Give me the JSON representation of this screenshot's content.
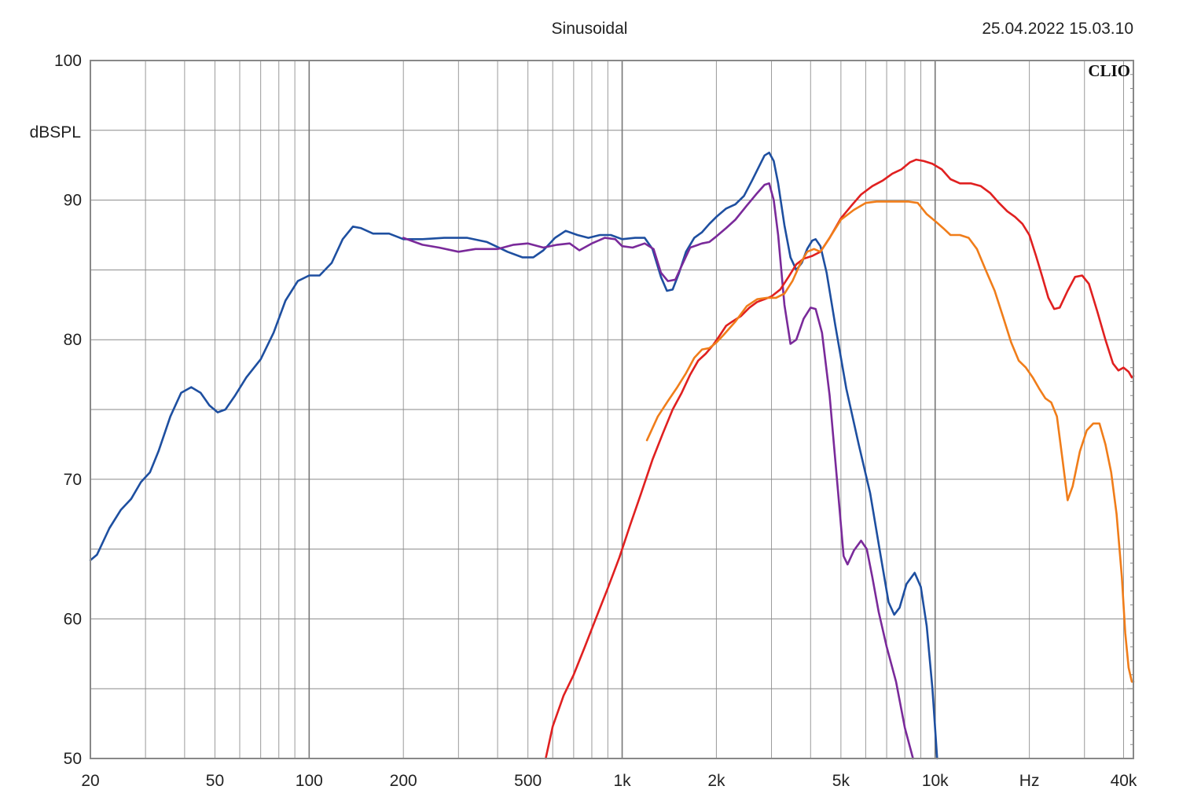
{
  "header": {
    "title": "Sinusoidal",
    "datetime": "25.04.2022 15.03.10",
    "brand": "CLIO"
  },
  "chart_data": {
    "type": "line",
    "title": "Sinusoidal",
    "xlabel": "Hz",
    "ylabel": "dBSPL",
    "x_scale": "log",
    "xlim": [
      20,
      43000
    ],
    "ylim": [
      50,
      100
    ],
    "grid": true,
    "x_ticks": [
      {
        "value": 20,
        "label": "20"
      },
      {
        "value": 50,
        "label": "50"
      },
      {
        "value": 100,
        "label": "100"
      },
      {
        "value": 200,
        "label": "200"
      },
      {
        "value": 500,
        "label": "500"
      },
      {
        "value": 1000,
        "label": "1k"
      },
      {
        "value": 2000,
        "label": "2k"
      },
      {
        "value": 5000,
        "label": "5k"
      },
      {
        "value": 10000,
        "label": "10k"
      },
      {
        "value": 20000,
        "label": "Hz"
      },
      {
        "value": 40000,
        "label": "40k"
      }
    ],
    "y_ticks": [
      {
        "value": 100,
        "label": "100"
      },
      {
        "value": 90,
        "label": "90"
      },
      {
        "value": 80,
        "label": "80"
      },
      {
        "value": 70,
        "label": "70"
      },
      {
        "value": 60,
        "label": "60"
      },
      {
        "value": 50,
        "label": "50"
      }
    ],
    "series": [
      {
        "color": "#1e4fa0",
        "points": [
          [
            20,
            64.2
          ],
          [
            21,
            64.6
          ],
          [
            23,
            66.5
          ],
          [
            25,
            67.8
          ],
          [
            27,
            68.6
          ],
          [
            29,
            69.8
          ],
          [
            31,
            70.5
          ],
          [
            33,
            72
          ],
          [
            36,
            74.5
          ],
          [
            39,
            76.2
          ],
          [
            42,
            76.6
          ],
          [
            45,
            76.2
          ],
          [
            48,
            75.3
          ],
          [
            51,
            74.8
          ],
          [
            54,
            75
          ],
          [
            58,
            76
          ],
          [
            63,
            77.3
          ],
          [
            70,
            78.6
          ],
          [
            77,
            80.5
          ],
          [
            84,
            82.8
          ],
          [
            92,
            84.2
          ],
          [
            100,
            84.6
          ],
          [
            108,
            84.6
          ],
          [
            118,
            85.5
          ],
          [
            128,
            87.2
          ],
          [
            138,
            88.1
          ],
          [
            146,
            88
          ],
          [
            160,
            87.6
          ],
          [
            180,
            87.6
          ],
          [
            200,
            87.2
          ],
          [
            230,
            87.2
          ],
          [
            270,
            87.3
          ],
          [
            320,
            87.3
          ],
          [
            370,
            87
          ],
          [
            430,
            86.3
          ],
          [
            480,
            85.9
          ],
          [
            520,
            85.9
          ],
          [
            560,
            86.4
          ],
          [
            610,
            87.3
          ],
          [
            660,
            87.8
          ],
          [
            720,
            87.5
          ],
          [
            780,
            87.3
          ],
          [
            850,
            87.5
          ],
          [
            920,
            87.5
          ],
          [
            1000,
            87.2
          ],
          [
            1100,
            87.3
          ],
          [
            1180,
            87.3
          ],
          [
            1250,
            86.5
          ],
          [
            1330,
            84.5
          ],
          [
            1390,
            83.5
          ],
          [
            1450,
            83.6
          ],
          [
            1520,
            84.8
          ],
          [
            1600,
            86.3
          ],
          [
            1700,
            87.3
          ],
          [
            1800,
            87.7
          ],
          [
            1900,
            88.3
          ],
          [
            2000,
            88.8
          ],
          [
            2150,
            89.4
          ],
          [
            2300,
            89.7
          ],
          [
            2450,
            90.3
          ],
          [
            2600,
            91.4
          ],
          [
            2750,
            92.5
          ],
          [
            2850,
            93.2
          ],
          [
            2950,
            93.4
          ],
          [
            3050,
            92.8
          ],
          [
            3150,
            91.2
          ],
          [
            3300,
            88.2
          ],
          [
            3450,
            85.9
          ],
          [
            3600,
            85
          ],
          [
            3750,
            85.5
          ],
          [
            3900,
            86.5
          ],
          [
            4050,
            87.1
          ],
          [
            4150,
            87.2
          ],
          [
            4300,
            86.7
          ],
          [
            4500,
            84.8
          ],
          [
            4800,
            81
          ],
          [
            5200,
            76.5
          ],
          [
            5700,
            72.5
          ],
          [
            6200,
            69
          ],
          [
            6700,
            64.5
          ],
          [
            7100,
            61.2
          ],
          [
            7400,
            60.3
          ],
          [
            7700,
            60.8
          ],
          [
            8100,
            62.5
          ],
          [
            8600,
            63.3
          ],
          [
            9000,
            62.3
          ],
          [
            9400,
            59.5
          ],
          [
            9800,
            55
          ],
          [
            10150,
            50
          ]
        ]
      },
      {
        "color": "#7a2a9a",
        "points": [
          [
            200,
            87.3
          ],
          [
            230,
            86.8
          ],
          [
            260,
            86.6
          ],
          [
            300,
            86.3
          ],
          [
            340,
            86.5
          ],
          [
            400,
            86.5
          ],
          [
            450,
            86.8
          ],
          [
            500,
            86.9
          ],
          [
            560,
            86.6
          ],
          [
            620,
            86.8
          ],
          [
            680,
            86.9
          ],
          [
            730,
            86.4
          ],
          [
            800,
            86.9
          ],
          [
            880,
            87.3
          ],
          [
            950,
            87.2
          ],
          [
            1000,
            86.7
          ],
          [
            1080,
            86.6
          ],
          [
            1180,
            86.9
          ],
          [
            1260,
            86.5
          ],
          [
            1330,
            84.8
          ],
          [
            1400,
            84.2
          ],
          [
            1480,
            84.3
          ],
          [
            1550,
            85.3
          ],
          [
            1650,
            86.6
          ],
          [
            1800,
            86.9
          ],
          [
            1900,
            87
          ],
          [
            2000,
            87.4
          ],
          [
            2150,
            88
          ],
          [
            2300,
            88.6
          ],
          [
            2500,
            89.6
          ],
          [
            2700,
            90.5
          ],
          [
            2850,
            91.1
          ],
          [
            2950,
            91.2
          ],
          [
            3050,
            90
          ],
          [
            3150,
            87.5
          ],
          [
            3300,
            82.5
          ],
          [
            3450,
            79.7
          ],
          [
            3600,
            80
          ],
          [
            3800,
            81.5
          ],
          [
            4000,
            82.3
          ],
          [
            4150,
            82.2
          ],
          [
            4350,
            80.5
          ],
          [
            4600,
            76
          ],
          [
            4900,
            69
          ],
          [
            5100,
            64.5
          ],
          [
            5250,
            63.9
          ],
          [
            5500,
            64.9
          ],
          [
            5800,
            65.6
          ],
          [
            6050,
            65
          ],
          [
            6300,
            63
          ],
          [
            6600,
            60.5
          ],
          [
            7000,
            58
          ],
          [
            7500,
            55.5
          ],
          [
            8000,
            52.2
          ],
          [
            8500,
            50
          ]
        ]
      },
      {
        "color": "#e02020",
        "points": [
          [
            570,
            50
          ],
          [
            600,
            52.3
          ],
          [
            650,
            54.5
          ],
          [
            700,
            56
          ],
          [
            760,
            58
          ],
          [
            830,
            60.2
          ],
          [
            900,
            62.2
          ],
          [
            980,
            64.4
          ],
          [
            1060,
            66.7
          ],
          [
            1150,
            69
          ],
          [
            1250,
            71.4
          ],
          [
            1350,
            73.3
          ],
          [
            1450,
            75
          ],
          [
            1550,
            76.2
          ],
          [
            1650,
            77.5
          ],
          [
            1750,
            78.5
          ],
          [
            1850,
            79
          ],
          [
            1950,
            79.6
          ],
          [
            2050,
            80.3
          ],
          [
            2150,
            81
          ],
          [
            2250,
            81.3
          ],
          [
            2400,
            81.7
          ],
          [
            2550,
            82.3
          ],
          [
            2700,
            82.7
          ],
          [
            2850,
            82.9
          ],
          [
            3000,
            83.1
          ],
          [
            3200,
            83.6
          ],
          [
            3400,
            84.5
          ],
          [
            3600,
            85.4
          ],
          [
            3800,
            85.8
          ],
          [
            4050,
            86
          ],
          [
            4300,
            86.3
          ],
          [
            4600,
            87.3
          ],
          [
            5000,
            88.7
          ],
          [
            5400,
            89.6
          ],
          [
            5800,
            90.4
          ],
          [
            6300,
            91
          ],
          [
            6800,
            91.4
          ],
          [
            7300,
            91.9
          ],
          [
            7800,
            92.2
          ],
          [
            8300,
            92.7
          ],
          [
            8700,
            92.9
          ],
          [
            9200,
            92.8
          ],
          [
            9800,
            92.6
          ],
          [
            10500,
            92.2
          ],
          [
            11200,
            91.5
          ],
          [
            12000,
            91.2
          ],
          [
            13000,
            91.2
          ],
          [
            14000,
            91
          ],
          [
            15000,
            90.5
          ],
          [
            16000,
            89.8
          ],
          [
            17000,
            89.2
          ],
          [
            18000,
            88.8
          ],
          [
            19000,
            88.3
          ],
          [
            20000,
            87.5
          ],
          [
            21000,
            86
          ],
          [
            22000,
            84.5
          ],
          [
            23000,
            83
          ],
          [
            24000,
            82.2
          ],
          [
            25000,
            82.3
          ],
          [
            26500,
            83.5
          ],
          [
            28000,
            84.5
          ],
          [
            29500,
            84.6
          ],
          [
            31000,
            84
          ],
          [
            33000,
            82
          ],
          [
            35000,
            80
          ],
          [
            37000,
            78.3
          ],
          [
            38500,
            77.8
          ],
          [
            40000,
            78
          ],
          [
            41500,
            77.7
          ],
          [
            42500,
            77.3
          ],
          [
            43000,
            77.4
          ]
        ]
      },
      {
        "color": "#f07d1a",
        "points": [
          [
            1200,
            72.8
          ],
          [
            1300,
            74.5
          ],
          [
            1400,
            75.6
          ],
          [
            1500,
            76.6
          ],
          [
            1600,
            77.6
          ],
          [
            1700,
            78.7
          ],
          [
            1800,
            79.3
          ],
          [
            1900,
            79.4
          ],
          [
            2000,
            79.8
          ],
          [
            2100,
            80.3
          ],
          [
            2300,
            81.3
          ],
          [
            2500,
            82.4
          ],
          [
            2700,
            82.9
          ],
          [
            2900,
            83
          ],
          [
            3100,
            83
          ],
          [
            3300,
            83.3
          ],
          [
            3500,
            84.2
          ],
          [
            3700,
            85.4
          ],
          [
            3900,
            86.3
          ],
          [
            4100,
            86.5
          ],
          [
            4300,
            86.3
          ],
          [
            4600,
            87.3
          ],
          [
            5000,
            88.6
          ],
          [
            5500,
            89.3
          ],
          [
            6000,
            89.8
          ],
          [
            6500,
            89.9
          ],
          [
            7000,
            89.9
          ],
          [
            7600,
            89.9
          ],
          [
            8200,
            89.9
          ],
          [
            8800,
            89.8
          ],
          [
            9400,
            89
          ],
          [
            10000,
            88.5
          ],
          [
            10600,
            88
          ],
          [
            11200,
            87.5
          ],
          [
            12000,
            87.5
          ],
          [
            12800,
            87.3
          ],
          [
            13600,
            86.5
          ],
          [
            14500,
            85
          ],
          [
            15500,
            83.5
          ],
          [
            16500,
            81.6
          ],
          [
            17500,
            79.8
          ],
          [
            18500,
            78.5
          ],
          [
            19500,
            78
          ],
          [
            20500,
            77.3
          ],
          [
            21500,
            76.5
          ],
          [
            22500,
            75.8
          ],
          [
            23500,
            75.5
          ],
          [
            24500,
            74.5
          ],
          [
            25500,
            71.5
          ],
          [
            26500,
            68.5
          ],
          [
            27500,
            69.5
          ],
          [
            29000,
            72
          ],
          [
            30500,
            73.5
          ],
          [
            32000,
            74
          ],
          [
            33500,
            74
          ],
          [
            35000,
            72.5
          ],
          [
            36500,
            70.5
          ],
          [
            38000,
            67.5
          ],
          [
            39500,
            63
          ],
          [
            40500,
            59
          ],
          [
            41500,
            56.5
          ],
          [
            42500,
            55.5
          ],
          [
            43000,
            55.5
          ]
        ]
      }
    ]
  }
}
